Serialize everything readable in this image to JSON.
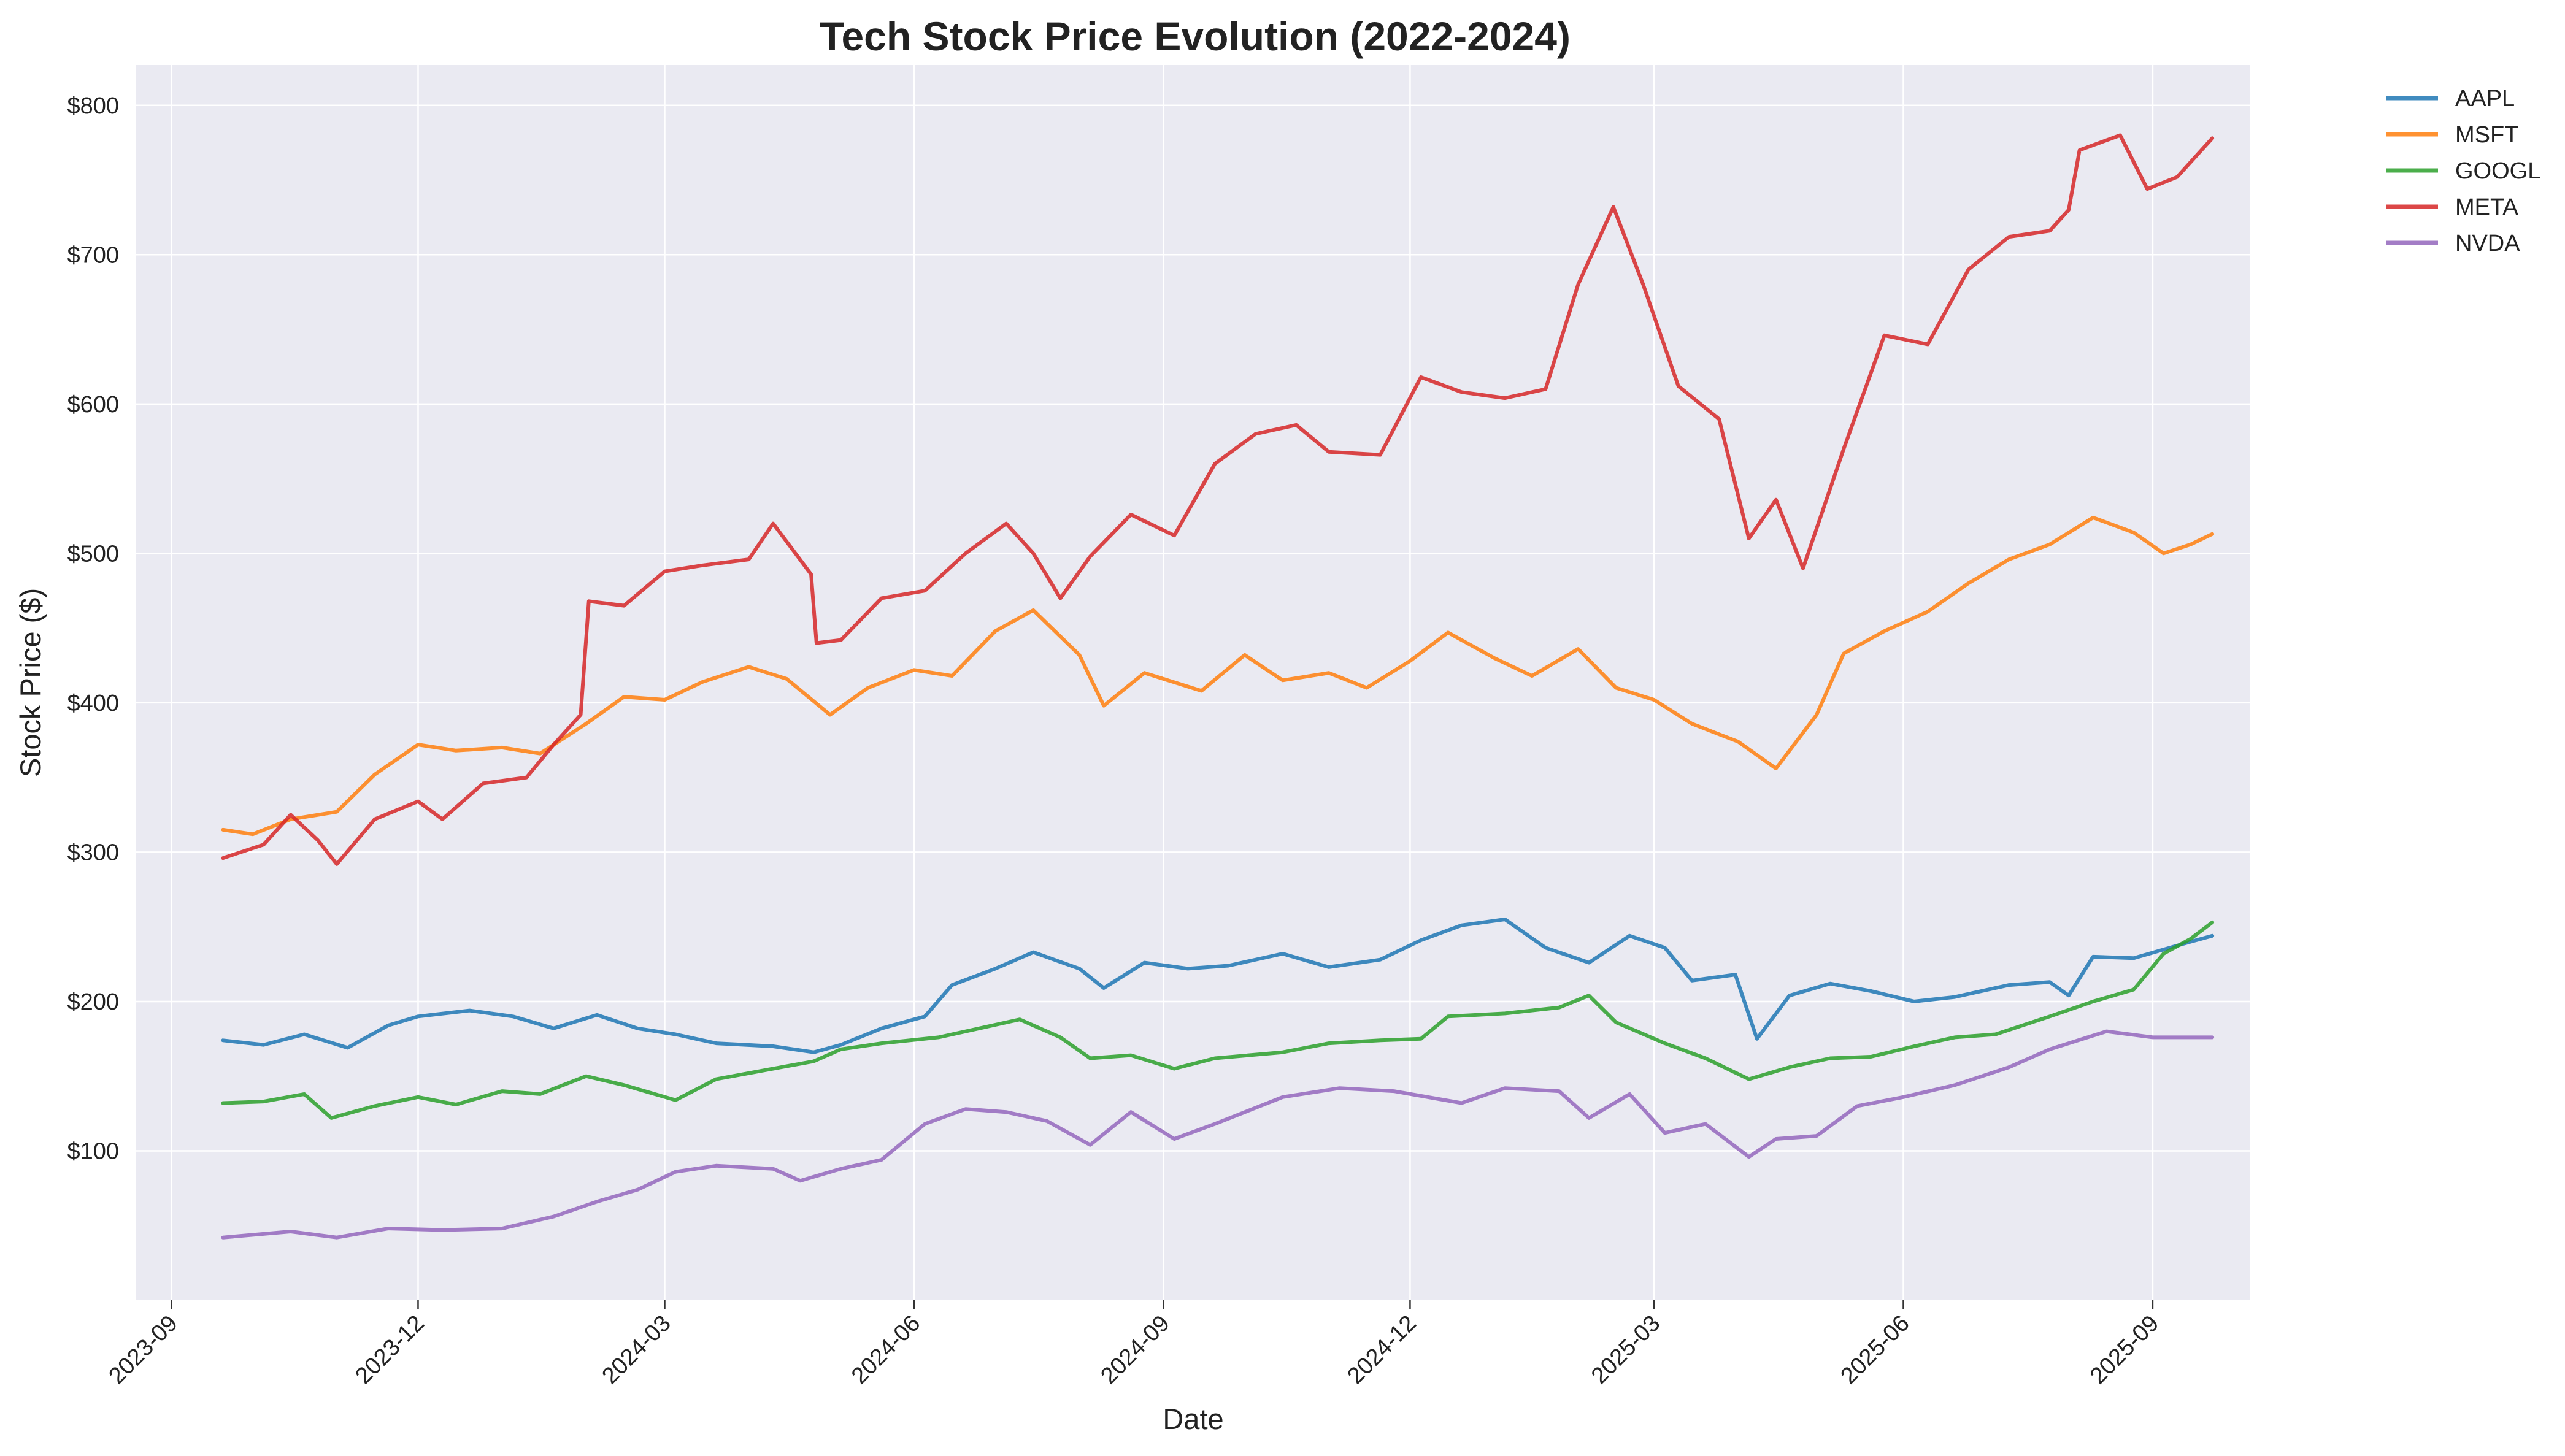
{
  "chart_data": {
    "type": "line",
    "title": "Tech Stock Price Evolution (2022-2024)",
    "xlabel": "Date",
    "ylabel": "Stock Price ($)",
    "x_range": [
      "2023-08-19",
      "2025-10-07"
    ],
    "ylim": [
      0,
      827
    ],
    "y_ticks": [
      100,
      200,
      300,
      400,
      500,
      600,
      700,
      800
    ],
    "y_tick_labels": [
      "$100",
      "$200",
      "$300",
      "$400",
      "$500",
      "$600",
      "$700",
      "$800"
    ],
    "x_ticks": [
      "2023-09-01",
      "2023-12-01",
      "2024-03-01",
      "2024-06-01",
      "2024-09-01",
      "2024-12-01",
      "2025-03-01",
      "2025-06-01",
      "2025-09-01"
    ],
    "x_tick_labels": [
      "2023-09",
      "2023-12",
      "2024-03",
      "2024-06",
      "2024-09",
      "2024-12",
      "2025-03",
      "2025-06",
      "2025-09"
    ],
    "grid": true,
    "legend_position": "outside-top-right",
    "colors": {
      "plot_background": "#EAEAF2",
      "grid": "#FFFFFF"
    },
    "series": [
      {
        "name": "AAPL",
        "color": "#1F77B4",
        "points": [
          [
            "2023-09-20",
            174
          ],
          [
            "2023-10-05",
            171
          ],
          [
            "2023-10-20",
            178
          ],
          [
            "2023-11-05",
            169
          ],
          [
            "2023-11-20",
            184
          ],
          [
            "2023-12-01",
            190
          ],
          [
            "2023-12-20",
            194
          ],
          [
            "2024-01-05",
            190
          ],
          [
            "2024-01-20",
            182
          ],
          [
            "2024-02-05",
            191
          ],
          [
            "2024-02-20",
            182
          ],
          [
            "2024-03-05",
            178
          ],
          [
            "2024-03-20",
            172
          ],
          [
            "2024-04-10",
            170
          ],
          [
            "2024-04-25",
            166
          ],
          [
            "2024-05-05",
            171
          ],
          [
            "2024-05-20",
            182
          ],
          [
            "2024-06-05",
            190
          ],
          [
            "2024-06-15",
            211
          ],
          [
            "2024-07-01",
            222
          ],
          [
            "2024-07-15",
            233
          ],
          [
            "2024-08-01",
            222
          ],
          [
            "2024-08-10",
            209
          ],
          [
            "2024-08-25",
            226
          ],
          [
            "2024-09-10",
            222
          ],
          [
            "2024-09-25",
            224
          ],
          [
            "2024-10-15",
            232
          ],
          [
            "2024-11-01",
            223
          ],
          [
            "2024-11-20",
            228
          ],
          [
            "2024-12-05",
            241
          ],
          [
            "2024-12-20",
            251
          ],
          [
            "2025-01-05",
            255
          ],
          [
            "2025-01-20",
            236
          ],
          [
            "2025-02-05",
            226
          ],
          [
            "2025-02-20",
            244
          ],
          [
            "2025-03-05",
            236
          ],
          [
            "2025-03-15",
            214
          ],
          [
            "2025-03-31",
            218
          ],
          [
            "2025-04-08",
            175
          ],
          [
            "2025-04-20",
            204
          ],
          [
            "2025-05-05",
            212
          ],
          [
            "2025-05-20",
            207
          ],
          [
            "2025-06-05",
            200
          ],
          [
            "2025-06-20",
            203
          ],
          [
            "2025-07-10",
            211
          ],
          [
            "2025-07-25",
            213
          ],
          [
            "2025-08-01",
            204
          ],
          [
            "2025-08-10",
            230
          ],
          [
            "2025-08-25",
            229
          ],
          [
            "2025-09-15",
            240
          ],
          [
            "2025-09-23",
            244
          ]
        ]
      },
      {
        "name": "MSFT",
        "color": "#FF7F0E",
        "points": [
          [
            "2023-09-20",
            315
          ],
          [
            "2023-10-01",
            312
          ],
          [
            "2023-10-15",
            322
          ],
          [
            "2023-11-01",
            327
          ],
          [
            "2023-11-15",
            352
          ],
          [
            "2023-12-01",
            372
          ],
          [
            "2023-12-15",
            368
          ],
          [
            "2024-01-01",
            370
          ],
          [
            "2024-01-15",
            366
          ],
          [
            "2024-02-01",
            386
          ],
          [
            "2024-02-15",
            404
          ],
          [
            "2024-03-01",
            402
          ],
          [
            "2024-03-15",
            414
          ],
          [
            "2024-04-01",
            424
          ],
          [
            "2024-04-15",
            416
          ],
          [
            "2024-05-01",
            392
          ],
          [
            "2024-05-15",
            410
          ],
          [
            "2024-06-01",
            422
          ],
          [
            "2024-06-15",
            418
          ],
          [
            "2024-07-01",
            448
          ],
          [
            "2024-07-15",
            462
          ],
          [
            "2024-08-01",
            432
          ],
          [
            "2024-08-10",
            398
          ],
          [
            "2024-08-25",
            420
          ],
          [
            "2024-09-15",
            408
          ],
          [
            "2024-10-01",
            432
          ],
          [
            "2024-10-15",
            415
          ],
          [
            "2024-11-01",
            420
          ],
          [
            "2024-11-15",
            410
          ],
          [
            "2024-12-01",
            428
          ],
          [
            "2024-12-15",
            447
          ],
          [
            "2025-01-01",
            430
          ],
          [
            "2025-01-15",
            418
          ],
          [
            "2025-02-01",
            436
          ],
          [
            "2025-02-15",
            410
          ],
          [
            "2025-03-01",
            402
          ],
          [
            "2025-03-15",
            386
          ],
          [
            "2025-04-01",
            374
          ],
          [
            "2025-04-15",
            356
          ],
          [
            "2025-04-30",
            392
          ],
          [
            "2025-05-10",
            433
          ],
          [
            "2025-05-25",
            448
          ],
          [
            "2025-06-10",
            461
          ],
          [
            "2025-06-25",
            480
          ],
          [
            "2025-07-10",
            496
          ],
          [
            "2025-07-25",
            506
          ],
          [
            "2025-08-10",
            524
          ],
          [
            "2025-08-25",
            514
          ],
          [
            "2025-09-05",
            500
          ],
          [
            "2025-09-15",
            506
          ],
          [
            "2025-09-23",
            513
          ]
        ]
      },
      {
        "name": "GOOGL",
        "color": "#2CA02C",
        "points": [
          [
            "2023-09-20",
            132
          ],
          [
            "2023-10-05",
            133
          ],
          [
            "2023-10-20",
            138
          ],
          [
            "2023-10-30",
            122
          ],
          [
            "2023-11-15",
            130
          ],
          [
            "2023-12-01",
            136
          ],
          [
            "2023-12-15",
            131
          ],
          [
            "2024-01-01",
            140
          ],
          [
            "2024-01-15",
            138
          ],
          [
            "2024-02-01",
            150
          ],
          [
            "2024-02-15",
            144
          ],
          [
            "2024-03-05",
            134
          ],
          [
            "2024-03-20",
            148
          ],
          [
            "2024-04-10",
            155
          ],
          [
            "2024-04-25",
            160
          ],
          [
            "2024-05-05",
            168
          ],
          [
            "2024-05-20",
            172
          ],
          [
            "2024-06-10",
            176
          ],
          [
            "2024-06-25",
            182
          ],
          [
            "2024-07-10",
            188
          ],
          [
            "2024-07-25",
            176
          ],
          [
            "2024-08-05",
            162
          ],
          [
            "2024-08-20",
            164
          ],
          [
            "2024-09-05",
            155
          ],
          [
            "2024-09-20",
            162
          ],
          [
            "2024-10-15",
            166
          ],
          [
            "2024-11-01",
            172
          ],
          [
            "2024-11-20",
            174
          ],
          [
            "2024-12-05",
            175
          ],
          [
            "2024-12-15",
            190
          ],
          [
            "2025-01-05",
            192
          ],
          [
            "2025-01-25",
            196
          ],
          [
            "2025-02-05",
            204
          ],
          [
            "2025-02-15",
            186
          ],
          [
            "2025-03-05",
            172
          ],
          [
            "2025-03-20",
            162
          ],
          [
            "2025-04-05",
            148
          ],
          [
            "2025-04-20",
            156
          ],
          [
            "2025-05-05",
            162
          ],
          [
            "2025-05-20",
            163
          ],
          [
            "2025-06-05",
            170
          ],
          [
            "2025-06-20",
            176
          ],
          [
            "2025-07-05",
            178
          ],
          [
            "2025-07-25",
            190
          ],
          [
            "2025-08-10",
            200
          ],
          [
            "2025-08-25",
            208
          ],
          [
            "2025-09-05",
            232
          ],
          [
            "2025-09-15",
            242
          ],
          [
            "2025-09-23",
            253
          ]
        ]
      },
      {
        "name": "META",
        "color": "#D62728",
        "points": [
          [
            "2023-09-20",
            296
          ],
          [
            "2023-10-05",
            305
          ],
          [
            "2023-10-15",
            325
          ],
          [
            "2023-10-25",
            308
          ],
          [
            "2023-11-01",
            292
          ],
          [
            "2023-11-15",
            322
          ],
          [
            "2023-12-01",
            334
          ],
          [
            "2023-12-10",
            322
          ],
          [
            "2023-12-25",
            346
          ],
          [
            "2024-01-10",
            350
          ],
          [
            "2024-01-20",
            372
          ],
          [
            "2024-01-30",
            392
          ],
          [
            "2024-02-02",
            468
          ],
          [
            "2024-02-15",
            465
          ],
          [
            "2024-03-01",
            488
          ],
          [
            "2024-03-15",
            492
          ],
          [
            "2024-04-01",
            496
          ],
          [
            "2024-04-10",
            520
          ],
          [
            "2024-04-24",
            486
          ],
          [
            "2024-04-26",
            440
          ],
          [
            "2024-05-05",
            442
          ],
          [
            "2024-05-20",
            470
          ],
          [
            "2024-06-05",
            475
          ],
          [
            "2024-06-20",
            500
          ],
          [
            "2024-07-05",
            520
          ],
          [
            "2024-07-15",
            500
          ],
          [
            "2024-07-25",
            470
          ],
          [
            "2024-08-05",
            498
          ],
          [
            "2024-08-20",
            526
          ],
          [
            "2024-09-05",
            512
          ],
          [
            "2024-09-20",
            560
          ],
          [
            "2024-10-05",
            580
          ],
          [
            "2024-10-20",
            586
          ],
          [
            "2024-11-01",
            568
          ],
          [
            "2024-11-20",
            566
          ],
          [
            "2024-12-05",
            618
          ],
          [
            "2024-12-20",
            608
          ],
          [
            "2025-01-05",
            604
          ],
          [
            "2025-01-20",
            610
          ],
          [
            "2025-02-01",
            680
          ],
          [
            "2025-02-14",
            732
          ],
          [
            "2025-02-25",
            680
          ],
          [
            "2025-03-10",
            612
          ],
          [
            "2025-03-25",
            590
          ],
          [
            "2025-04-05",
            510
          ],
          [
            "2025-04-15",
            536
          ],
          [
            "2025-04-25",
            490
          ],
          [
            "2025-05-10",
            570
          ],
          [
            "2025-05-25",
            646
          ],
          [
            "2025-06-10",
            640
          ],
          [
            "2025-06-25",
            690
          ],
          [
            "2025-07-10",
            712
          ],
          [
            "2025-07-25",
            716
          ],
          [
            "2025-08-01",
            730
          ],
          [
            "2025-08-05",
            770
          ],
          [
            "2025-08-20",
            780
          ],
          [
            "2025-08-30",
            744
          ],
          [
            "2025-09-10",
            752
          ],
          [
            "2025-09-23",
            778
          ]
        ]
      },
      {
        "name": "NVDA",
        "color": "#9467BD",
        "points": [
          [
            "2023-09-20",
            42
          ],
          [
            "2023-10-15",
            46
          ],
          [
            "2023-11-01",
            42
          ],
          [
            "2023-11-20",
            48
          ],
          [
            "2023-12-10",
            47
          ],
          [
            "2024-01-01",
            48
          ],
          [
            "2024-01-20",
            56
          ],
          [
            "2024-02-05",
            66
          ],
          [
            "2024-02-20",
            74
          ],
          [
            "2024-03-05",
            86
          ],
          [
            "2024-03-20",
            90
          ],
          [
            "2024-04-10",
            88
          ],
          [
            "2024-04-20",
            80
          ],
          [
            "2024-05-05",
            88
          ],
          [
            "2024-05-20",
            94
          ],
          [
            "2024-06-05",
            118
          ],
          [
            "2024-06-20",
            128
          ],
          [
            "2024-07-05",
            126
          ],
          [
            "2024-07-20",
            120
          ],
          [
            "2024-08-05",
            104
          ],
          [
            "2024-08-20",
            126
          ],
          [
            "2024-09-05",
            108
          ],
          [
            "2024-09-20",
            118
          ],
          [
            "2024-10-15",
            136
          ],
          [
            "2024-11-05",
            142
          ],
          [
            "2024-11-25",
            140
          ],
          [
            "2024-12-20",
            132
          ],
          [
            "2025-01-05",
            142
          ],
          [
            "2025-01-25",
            140
          ],
          [
            "2025-02-05",
            122
          ],
          [
            "2025-02-20",
            138
          ],
          [
            "2025-03-05",
            112
          ],
          [
            "2025-03-20",
            118
          ],
          [
            "2025-04-05",
            96
          ],
          [
            "2025-04-15",
            108
          ],
          [
            "2025-04-30",
            110
          ],
          [
            "2025-05-15",
            130
          ],
          [
            "2025-06-01",
            136
          ],
          [
            "2025-06-20",
            144
          ],
          [
            "2025-07-10",
            156
          ],
          [
            "2025-07-25",
            168
          ],
          [
            "2025-08-15",
            180
          ],
          [
            "2025-09-01",
            176
          ],
          [
            "2025-09-23",
            176
          ]
        ]
      }
    ]
  }
}
